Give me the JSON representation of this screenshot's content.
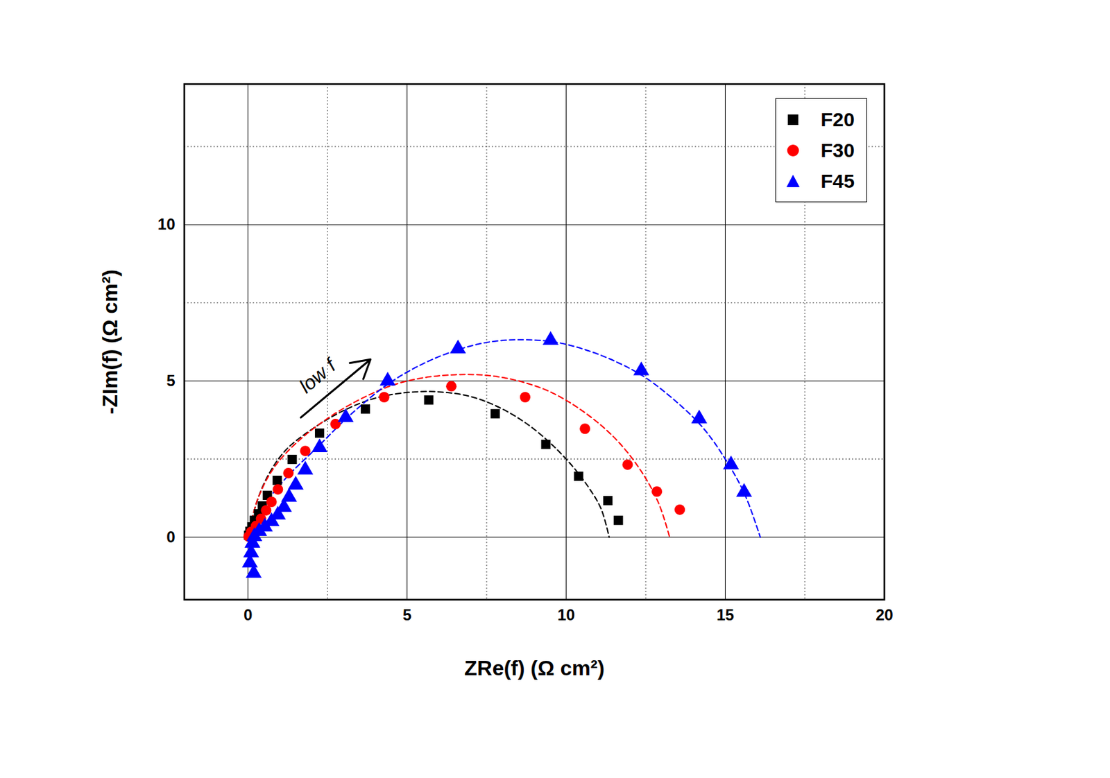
{
  "chart_data": {
    "type": "scatter",
    "x_label": "ZRe(f) (Ω cm²)",
    "y_label": "-ZIm(f) (Ω cm²)",
    "xlim": [
      -2,
      20
    ],
    "xticks": [
      0,
      5,
      10,
      15,
      20
    ],
    "ylim": [
      -2,
      14.5
    ],
    "yticks": [
      0,
      5,
      10
    ],
    "grid": true,
    "legend": "top-right",
    "annotations": [
      {
        "text": "low f",
        "x": 2.19,
        "y": 5.15,
        "arrow_from": [
          1.66,
          3.83
        ],
        "arrow_to": [
          3.85,
          5.69
        ]
      }
    ],
    "series": [
      {
        "name": "F20",
        "color": "#000000",
        "marker": "square",
        "x": [
          11.64,
          11.31,
          10.39,
          9.36,
          7.77,
          5.68,
          3.69,
          2.25,
          1.39,
          0.92,
          0.61,
          0.45,
          0.33,
          0.2,
          0.12,
          0.06,
          0.02
        ],
        "values": [
          0.54,
          1.17,
          1.95,
          2.97,
          3.95,
          4.39,
          4.1,
          3.33,
          2.49,
          1.82,
          1.34,
          1.0,
          0.75,
          0.54,
          0.33,
          0.19,
          0.06
        ],
        "fit": {
          "line_style": "dashed",
          "x": [
            0,
            0.3,
            0.7,
            1.2,
            2,
            3,
            4,
            5,
            6,
            7,
            8,
            9,
            10,
            10.7,
            11.1,
            11.35
          ],
          "values": [
            0,
            1.2,
            2.1,
            2.8,
            3.45,
            4.05,
            4.45,
            4.63,
            4.65,
            4.5,
            4.1,
            3.45,
            2.5,
            1.6,
            0.9,
            0
          ]
        }
      },
      {
        "name": "F30",
        "color": "#ff0000",
        "marker": "circle",
        "x": [
          13.57,
          12.85,
          11.93,
          10.59,
          8.71,
          6.39,
          4.28,
          2.75,
          1.8,
          1.27,
          0.94,
          0.74,
          0.57,
          0.41,
          0.25,
          0.1,
          0.02
        ],
        "values": [
          0.88,
          1.46,
          2.32,
          3.47,
          4.48,
          4.83,
          4.48,
          3.62,
          2.76,
          2.05,
          1.53,
          1.13,
          0.86,
          0.59,
          0.36,
          0.17,
          0.02
        ],
        "fit": {
          "line_style": "dashed",
          "x": [
            0,
            0.3,
            0.8,
            1.5,
            2.5,
            3.5,
            4.5,
            5.5,
            6.5,
            7.5,
            8.5,
            9.5,
            10.5,
            11.5,
            12.3,
            12.9,
            13.25
          ],
          "values": [
            0,
            1.2,
            2.2,
            3.0,
            3.8,
            4.4,
            4.85,
            5.1,
            5.2,
            5.18,
            5.0,
            4.65,
            4.05,
            3.2,
            2.2,
            1.1,
            0
          ]
        }
      },
      {
        "name": "F45",
        "color": "#0000ff",
        "marker": "triangle",
        "x": [
          15.59,
          15.18,
          14.18,
          12.36,
          9.51,
          6.6,
          4.39,
          3.07,
          2.25,
          1.8,
          1.5,
          1.29,
          1.13,
          0.94,
          0.74,
          0.53,
          0.35,
          0.2,
          0.14,
          0.1,
          0.06,
          0.18
        ],
        "values": [
          1.44,
          2.32,
          3.79,
          5.33,
          6.3,
          6.03,
          5.0,
          3.83,
          2.87,
          2.15,
          1.67,
          1.28,
          0.96,
          0.71,
          0.5,
          0.33,
          0.19,
          0.02,
          -0.19,
          -0.5,
          -0.82,
          -1.15
        ],
        "fit": {
          "line_style": "dashed",
          "x": [
            0,
            0.5,
            1.2,
            2.2,
            3.2,
            4.4,
            5.5,
            6.6,
            7.6,
            8.6,
            9.6,
            10.6,
            11.6,
            12.5,
            13.5,
            14.3,
            15.0,
            15.6,
            16.1
          ],
          "values": [
            0,
            1.0,
            1.9,
            2.9,
            3.9,
            4.9,
            5.55,
            6.0,
            6.25,
            6.32,
            6.25,
            6.0,
            5.6,
            5.1,
            4.3,
            3.5,
            2.5,
            1.4,
            0
          ]
        }
      }
    ]
  }
}
